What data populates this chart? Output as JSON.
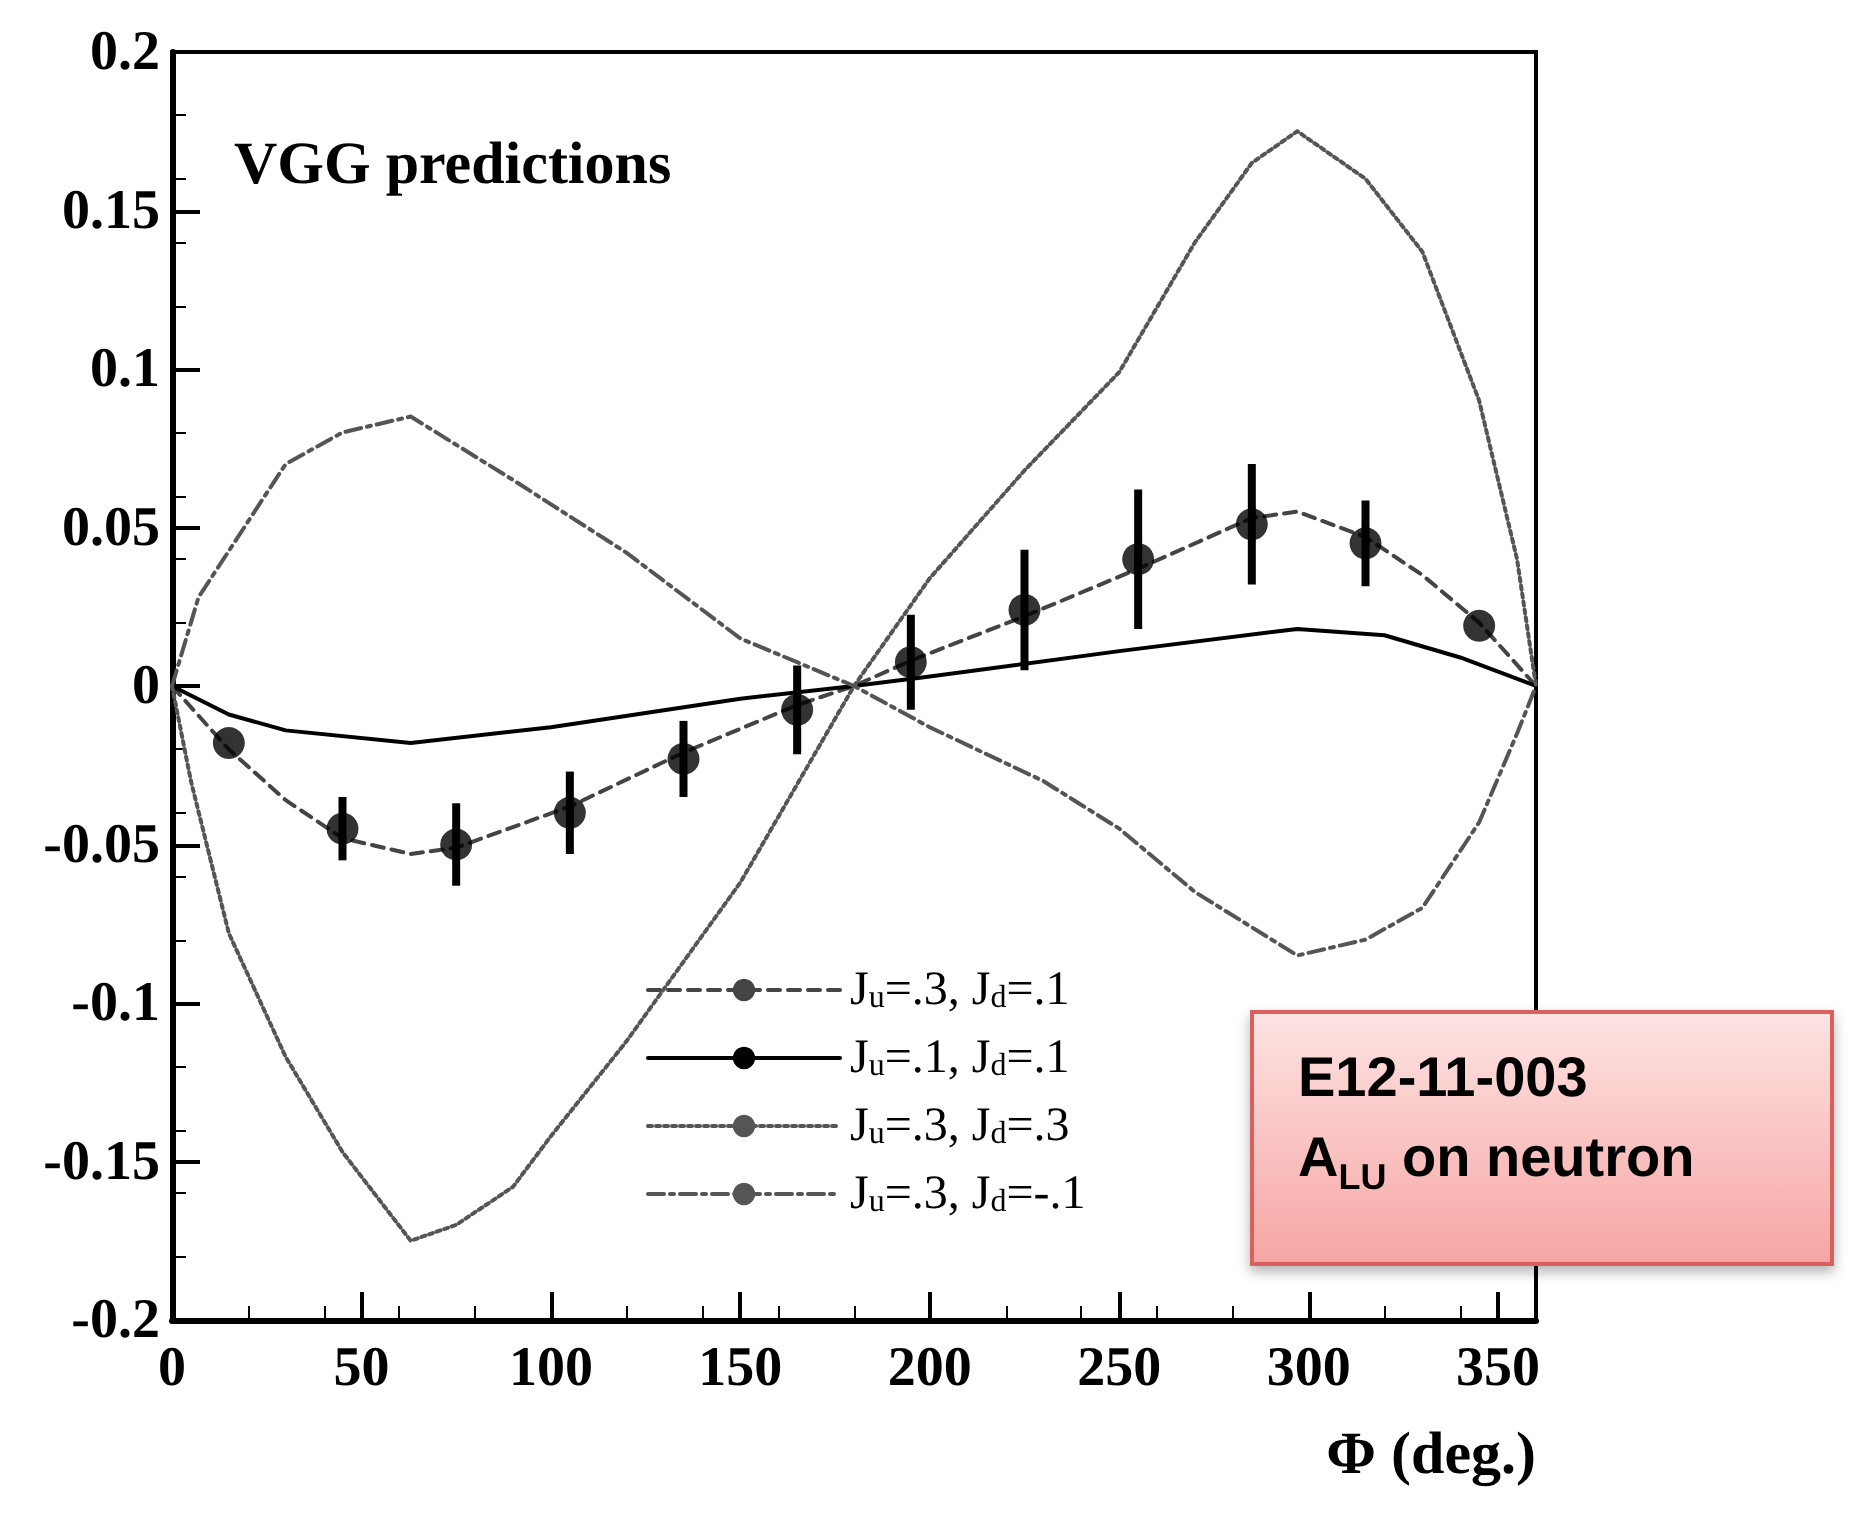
{
  "chart_data": {
    "type": "line",
    "title": "VGG predictions",
    "xlabel": "Φ (deg.)",
    "xlim": [
      0,
      360
    ],
    "xticks": [
      0,
      50,
      100,
      150,
      200,
      250,
      300,
      350
    ],
    "ylim": [
      -0.2,
      0.2
    ],
    "yticks": [
      -0.2,
      -0.15,
      -0.1,
      -0.05,
      0,
      0.05,
      0.1,
      0.15,
      0.2
    ],
    "grid": false,
    "legend": "bottom right",
    "marker": "none",
    "annotations": [
      "E12-11-003",
      "A$_{LU}$ on neutron"
    ],
    "series": [
      {
        "name": "J$_{u}$=.3, J$_{d}$=.1",
        "color": "#444444",
        "line_style": "dashed",
        "x": [
          0,
          15,
          30,
          45,
          63,
          75,
          105,
          135,
          165,
          180,
          195,
          225,
          255,
          285,
          297,
          315,
          330,
          345,
          360
        ],
        "values": [
          0,
          -0.02,
          -0.036,
          -0.048,
          -0.053,
          -0.051,
          -0.038,
          -0.021,
          -0.006,
          0,
          0.008,
          0.022,
          0.037,
          0.053,
          0.055,
          0.047,
          0.035,
          0.02,
          0
        ]
      },
      {
        "name": "J$_{u}$=.1, J$_{d}$=.1",
        "color": "#000000",
        "line_style": "solid",
        "x": [
          0,
          15,
          30,
          63,
          100,
          150,
          180,
          200,
          250,
          297,
          320,
          340,
          360
        ],
        "values": [
          0,
          -0.009,
          -0.014,
          -0.018,
          -0.013,
          -0.004,
          0,
          0.003,
          0.011,
          0.018,
          0.016,
          0.009,
          0
        ]
      },
      {
        "name": "J$_{u}$=.3, J$_{d}$=.3",
        "color": "#555555",
        "line_style": "dotted",
        "x": [
          0,
          5,
          15,
          30,
          45,
          63,
          75,
          90,
          100,
          120,
          150,
          180,
          200,
          225,
          250,
          270,
          285,
          297,
          315,
          330,
          345,
          355,
          360
        ],
        "values": [
          0,
          -0.03,
          -0.078,
          -0.117,
          -0.147,
          -0.175,
          -0.17,
          -0.158,
          -0.142,
          -0.112,
          -0.062,
          0,
          0.034,
          0.068,
          0.099,
          0.14,
          0.165,
          0.175,
          0.16,
          0.137,
          0.09,
          0.04,
          0
        ]
      },
      {
        "name": "J$_{u}$=.3, J$_{d}$=-.1",
        "color": "#555555",
        "line_style": "dashdot",
        "x": [
          0,
          7,
          30,
          45,
          63,
          90,
          120,
          150,
          180,
          200,
          230,
          250,
          270,
          297,
          315,
          330,
          345,
          355,
          360
        ],
        "values": [
          0,
          0.028,
          0.07,
          0.08,
          0.085,
          0.065,
          0.042,
          0.015,
          0,
          -0.013,
          -0.03,
          -0.045,
          -0.065,
          -0.085,
          -0.08,
          -0.07,
          -0.043,
          -0.015,
          0
        ]
      },
      {
        "type": "scatter",
        "marker": "circle",
        "color": "#000000",
        "x": [
          15,
          45,
          75,
          105,
          135,
          165,
          195,
          225,
          255,
          285,
          315,
          345
        ],
        "values": [
          -0.018,
          -0.045,
          -0.05,
          -0.04,
          -0.023,
          -0.0075,
          0.0075,
          0.024,
          0.04,
          0.051,
          0.045,
          0.019
        ],
        "errors": [
          null,
          0.01,
          0.013,
          0.013,
          0.012,
          0.014,
          0.015,
          0.019,
          0.022,
          0.019,
          0.0135,
          null
        ]
      }
    ]
  }
}
